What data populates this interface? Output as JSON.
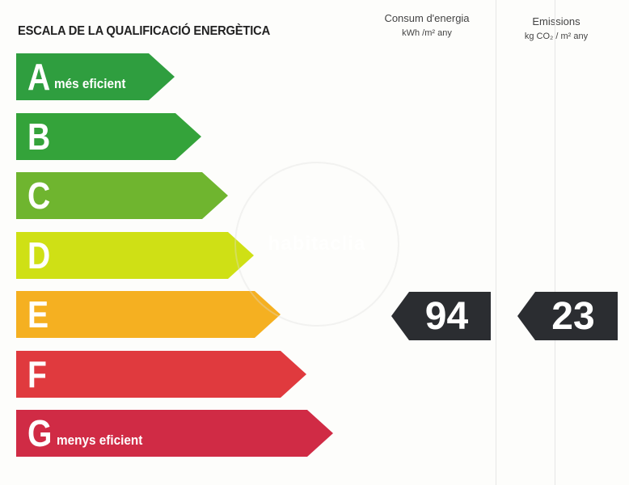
{
  "header": {
    "title": "ESCALA DE LA QUALIFICACIÓ ENERGÈTICA",
    "consum_line1": "Consum d'energia",
    "consum_line2": "kWh /m² any",
    "emissions_line1": "Emissions",
    "emissions_line2": "kg CO₂ / m² any"
  },
  "scale": [
    {
      "letter": "A",
      "note": "més eficient",
      "color": "#2f9e3f"
    },
    {
      "letter": "B",
      "note": "",
      "color": "#34a33a"
    },
    {
      "letter": "C",
      "note": "",
      "color": "#6fb52f"
    },
    {
      "letter": "D",
      "note": "",
      "color": "#cfe015"
    },
    {
      "letter": "E",
      "note": "",
      "color": "#f5b021"
    },
    {
      "letter": "F",
      "note": "",
      "color": "#e03a3e"
    },
    {
      "letter": "G",
      "note": "menys eficient",
      "color": "#d02b45"
    }
  ],
  "rating": {
    "class": "E",
    "consum_value": "94",
    "emissions_value": "23",
    "indicator_color": "#2b2d31"
  },
  "watermark": {
    "text": "habitaclia"
  }
}
